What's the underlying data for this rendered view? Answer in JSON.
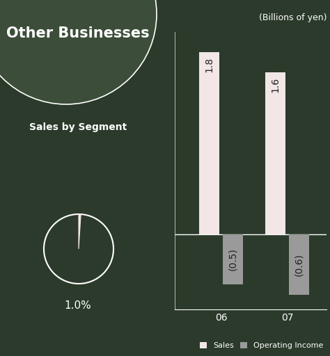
{
  "chart_data": [
    {
      "type": "bar",
      "title": "Other Businesses",
      "subtitle": "(Billions of yen)",
      "categories": [
        "06",
        "07"
      ],
      "series": [
        {
          "name": "Sales",
          "color": "#f2e6e6",
          "values": [
            1.8,
            1.6
          ],
          "value_labels": [
            "1.8",
            "1.6"
          ]
        },
        {
          "name": "Operating Income",
          "color": "#9a9a9a",
          "values": [
            -0.5,
            -0.6
          ],
          "value_labels": [
            "(0.5)",
            "(0.6)"
          ]
        }
      ],
      "ylim": [
        -0.75,
        2.0
      ],
      "data_labels": true,
      "tick_labels": "x",
      "legend": "lower right"
    },
    {
      "type": "pie",
      "title": "Sales by Segment",
      "values": [
        1.0
      ],
      "value_labels": [
        "1.0%"
      ],
      "color": "#f2e6e6"
    }
  ]
}
